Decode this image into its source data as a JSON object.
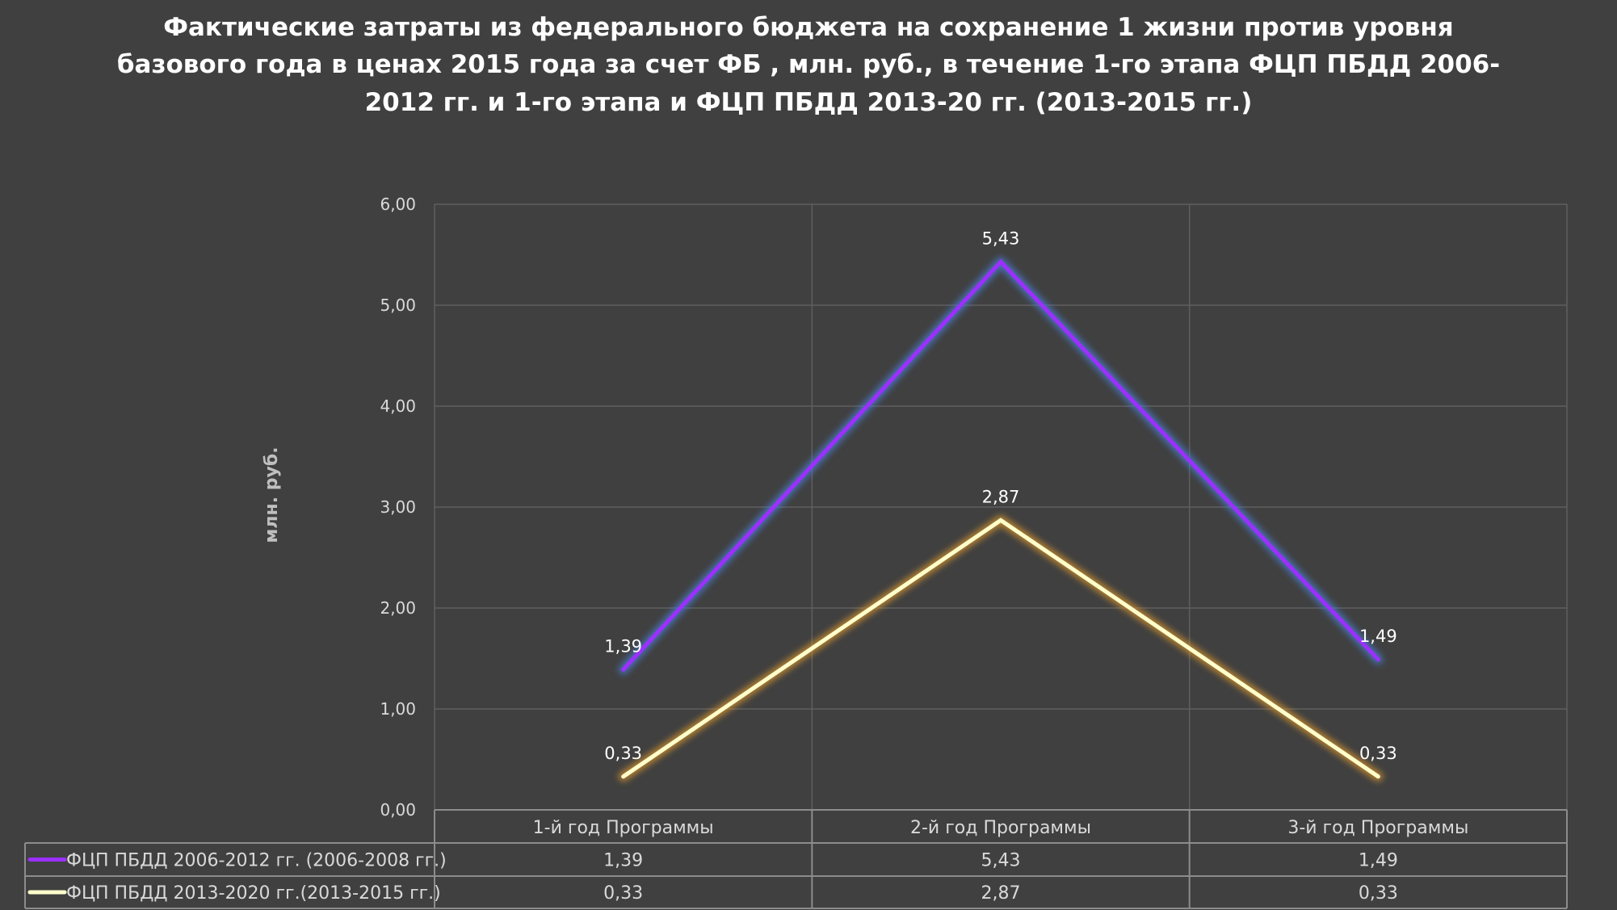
{
  "chart_data": {
    "type": "line",
    "title_lines": [
      "Фактические затраты из федерального бюджета на сохранение 1 жизни против уровня",
      "базового года в ценах 2015 года за счет ФБ , млн. руб., в течение 1-го этапа ФЦП ПБДД 2006-",
      "2012 гг. и 1-го этапа и ФЦП ПБДД 2013-20 гг. (2013-2015 гг.)"
    ],
    "ylabel": "млн. руб.",
    "categories": [
      "1-й год Программы",
      "2-й год Программы",
      "3-й год Программы"
    ],
    "ylim": [
      0,
      6
    ],
    "y_ticks": [
      "0,00",
      "1,00",
      "2,00",
      "3,00",
      "4,00",
      "5,00",
      "6,00"
    ],
    "grid": true,
    "data_table": true,
    "series": [
      {
        "name": "ФЦП ПБДД 2006-2012 гг. (2006-2008 гг.)",
        "values": [
          1.39,
          5.43,
          1.49
        ],
        "labels": [
          "1,39",
          "5,43",
          "1,49"
        ],
        "color": "#9b30ff",
        "glow": "#4a7cd0"
      },
      {
        "name": "ФЦП ПБДД 2013-2020 гг.(2013-2015 гг.)",
        "values": [
          0.33,
          2.87,
          0.33
        ],
        "labels": [
          "0,33",
          "2,87",
          "0,33"
        ],
        "color": "#ffffcc",
        "glow": "#d9962f"
      }
    ]
  }
}
